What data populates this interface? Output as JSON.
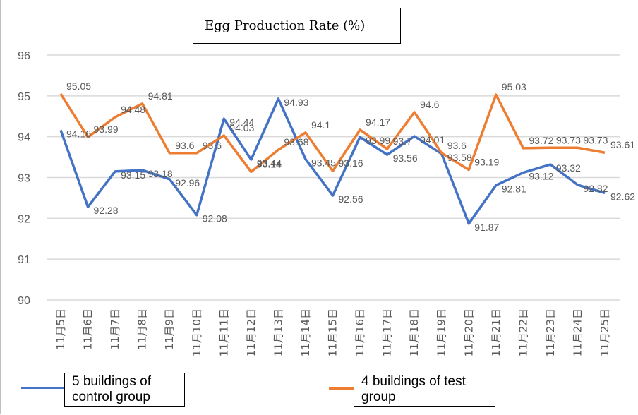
{
  "chart_data": {
    "type": "line",
    "title": "Egg Production Rate (%)",
    "xlabel": "",
    "ylabel": "",
    "ylim": [
      90,
      96
    ],
    "yticks": [
      90,
      91,
      92,
      93,
      94,
      95,
      96
    ],
    "grid": true,
    "legend_position": "bottom",
    "categories": [
      "11月5日",
      "11月6日",
      "11月7日",
      "11月8日",
      "11月9日",
      "11月10日",
      "11月11日",
      "11月12日",
      "11月13日",
      "11月14日",
      "11月15日",
      "11月16日",
      "11月17日",
      "11月18日",
      "11月19日",
      "11月20日",
      "11月21日",
      "11月22日",
      "11月23日",
      "11月24日",
      "11月25日"
    ],
    "series": [
      {
        "name": "5 buildings of control group",
        "color": "#4472c4",
        "values": [
          94.16,
          92.28,
          93.15,
          93.18,
          92.96,
          92.08,
          94.44,
          93.44,
          94.93,
          93.45,
          92.56,
          93.99,
          93.56,
          94.01,
          93.58,
          91.87,
          92.81,
          93.12,
          93.32,
          92.82,
          92.62
        ]
      },
      {
        "name": "4 buildings of test group",
        "color": "#ed7d31",
        "values": [
          95.05,
          93.99,
          94.48,
          94.81,
          93.6,
          93.6,
          94.03,
          93.14,
          93.68,
          94.1,
          93.16,
          94.17,
          93.7,
          94.6,
          93.6,
          93.19,
          95.03,
          93.72,
          93.73,
          93.73,
          93.61
        ]
      }
    ]
  }
}
